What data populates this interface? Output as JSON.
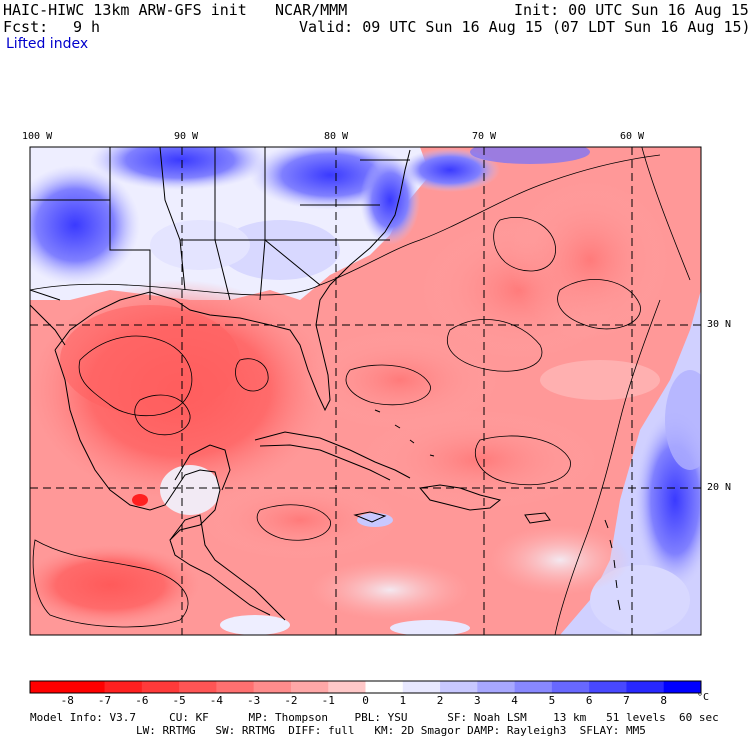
{
  "header": {
    "model_title": "HAIC-HIWC 13km ARW-GFS init",
    "org": "NCAR/MMM",
    "init": "Init: 00 UTC Sun 16 Aug 15",
    "fcst_label": "Fcst:",
    "fcst_value": "9 h",
    "valid": "Valid: 09 UTC Sun 16 Aug 15 (07 LDT Sun 16 Aug 15)",
    "field": "Lifted index"
  },
  "map": {
    "longitude_labels": [
      "100 W",
      "90 W",
      "80 W",
      "70 W",
      "60 W"
    ],
    "latitude_labels": [
      "30 N",
      "20 N"
    ]
  },
  "colorbar": {
    "ticks": [
      "-8",
      "-7",
      "-6",
      "-5",
      "-4",
      "-3",
      "-2",
      "-1",
      "0",
      "1",
      "2",
      "3",
      "4",
      "5",
      "6",
      "7",
      "8"
    ],
    "unit": "°C",
    "colors": [
      "#ff0000",
      "#ff2020",
      "#ff3a3a",
      "#ff5555",
      "#ff7070",
      "#ff8c8c",
      "#ffa8a8",
      "#ffc8c8",
      "#ffffff",
      "#e8e8ff",
      "#c8c8ff",
      "#a8a8ff",
      "#8888ff",
      "#6868ff",
      "#4848ff",
      "#2828ff",
      "#0000ff"
    ]
  },
  "model_info": {
    "line1": "Model Info: V3.7     CU: KF      MP: Thompson    PBL: YSU      SF: Noah LSM    13 km   51 levels  60 sec",
    "line2": "                LW: RRTMG   SW: RRTMG  DIFF: full   KM: 2D Smagor DAMP: Rayleigh3  SFLAY: MM5"
  }
}
